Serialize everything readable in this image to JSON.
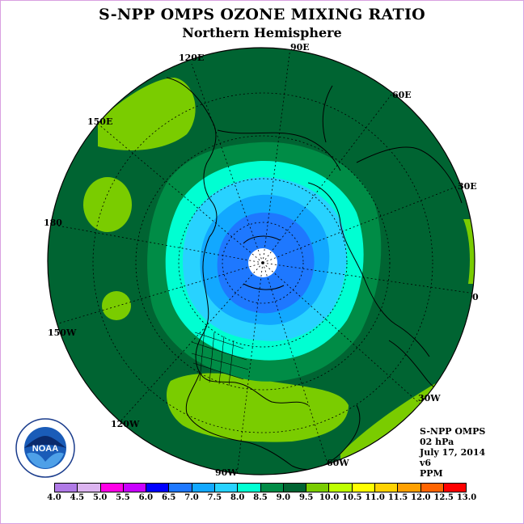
{
  "title": "S-NPP OMPS OZONE MIXING RATIO",
  "subtitle": "Northern Hemisphere",
  "longitude_labels": [
    "90E",
    "60E",
    "30E",
    "0",
    "30W",
    "60W",
    "90W",
    "120W",
    "150W",
    "180",
    "150E",
    "120E"
  ],
  "info": {
    "instrument": "S-NPP OMPS",
    "level": "02 hPa",
    "date": "July 17, 2014",
    "version": "v6",
    "units": "PPM"
  },
  "colorbar": {
    "ticks": [
      "4.0",
      "4.5",
      "5.0",
      "5.5",
      "6.0",
      "6.5",
      "7.0",
      "7.5",
      "8.0",
      "8.5",
      "9.0",
      "9.5",
      "10.0",
      "10.5",
      "11.0",
      "11.5",
      "12.0",
      "12.5",
      "13.0"
    ],
    "colors": [
      "#b07ae6",
      "#dcb4f0",
      "#ff00e6",
      "#c800ff",
      "#0000ff",
      "#1e78ff",
      "#12a8ff",
      "#28d2ff",
      "#00ffd2",
      "#008c46",
      "#006432",
      "#7acc00",
      "#beff00",
      "#ffff00",
      "#ffd200",
      "#ffa000",
      "#ff6400",
      "#ff0000",
      "#8c5a3c"
    ]
  },
  "map_colors": {
    "bg": "#006432",
    "c85": "#008c46",
    "c80": "#00ffd2",
    "c75": "#28d2ff",
    "c70": "#12a8ff",
    "c65": "#1e78ff",
    "high": "#7acc00",
    "pole": "#ffffff"
  }
}
